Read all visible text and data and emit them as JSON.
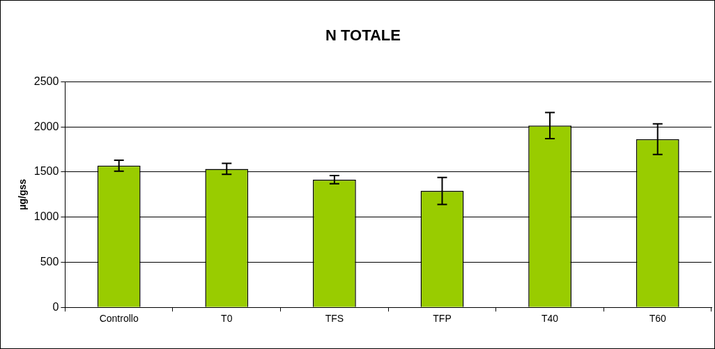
{
  "chart_data": {
    "type": "bar",
    "title": "N TOTALE",
    "ylabel": "µg/gss",
    "categories": [
      "Controllo",
      "T0",
      "TFS",
      "TFP",
      "T40",
      "T60"
    ],
    "values": [
      1570,
      1535,
      1415,
      1290,
      2015,
      1865
    ],
    "errors": [
      60,
      60,
      45,
      150,
      145,
      170
    ],
    "color": "#99cc00",
    "ylim": [
      0,
      2500
    ],
    "yticks": [
      0,
      500,
      1000,
      1500,
      2000,
      2500
    ],
    "grid": "y",
    "legend": false
  }
}
